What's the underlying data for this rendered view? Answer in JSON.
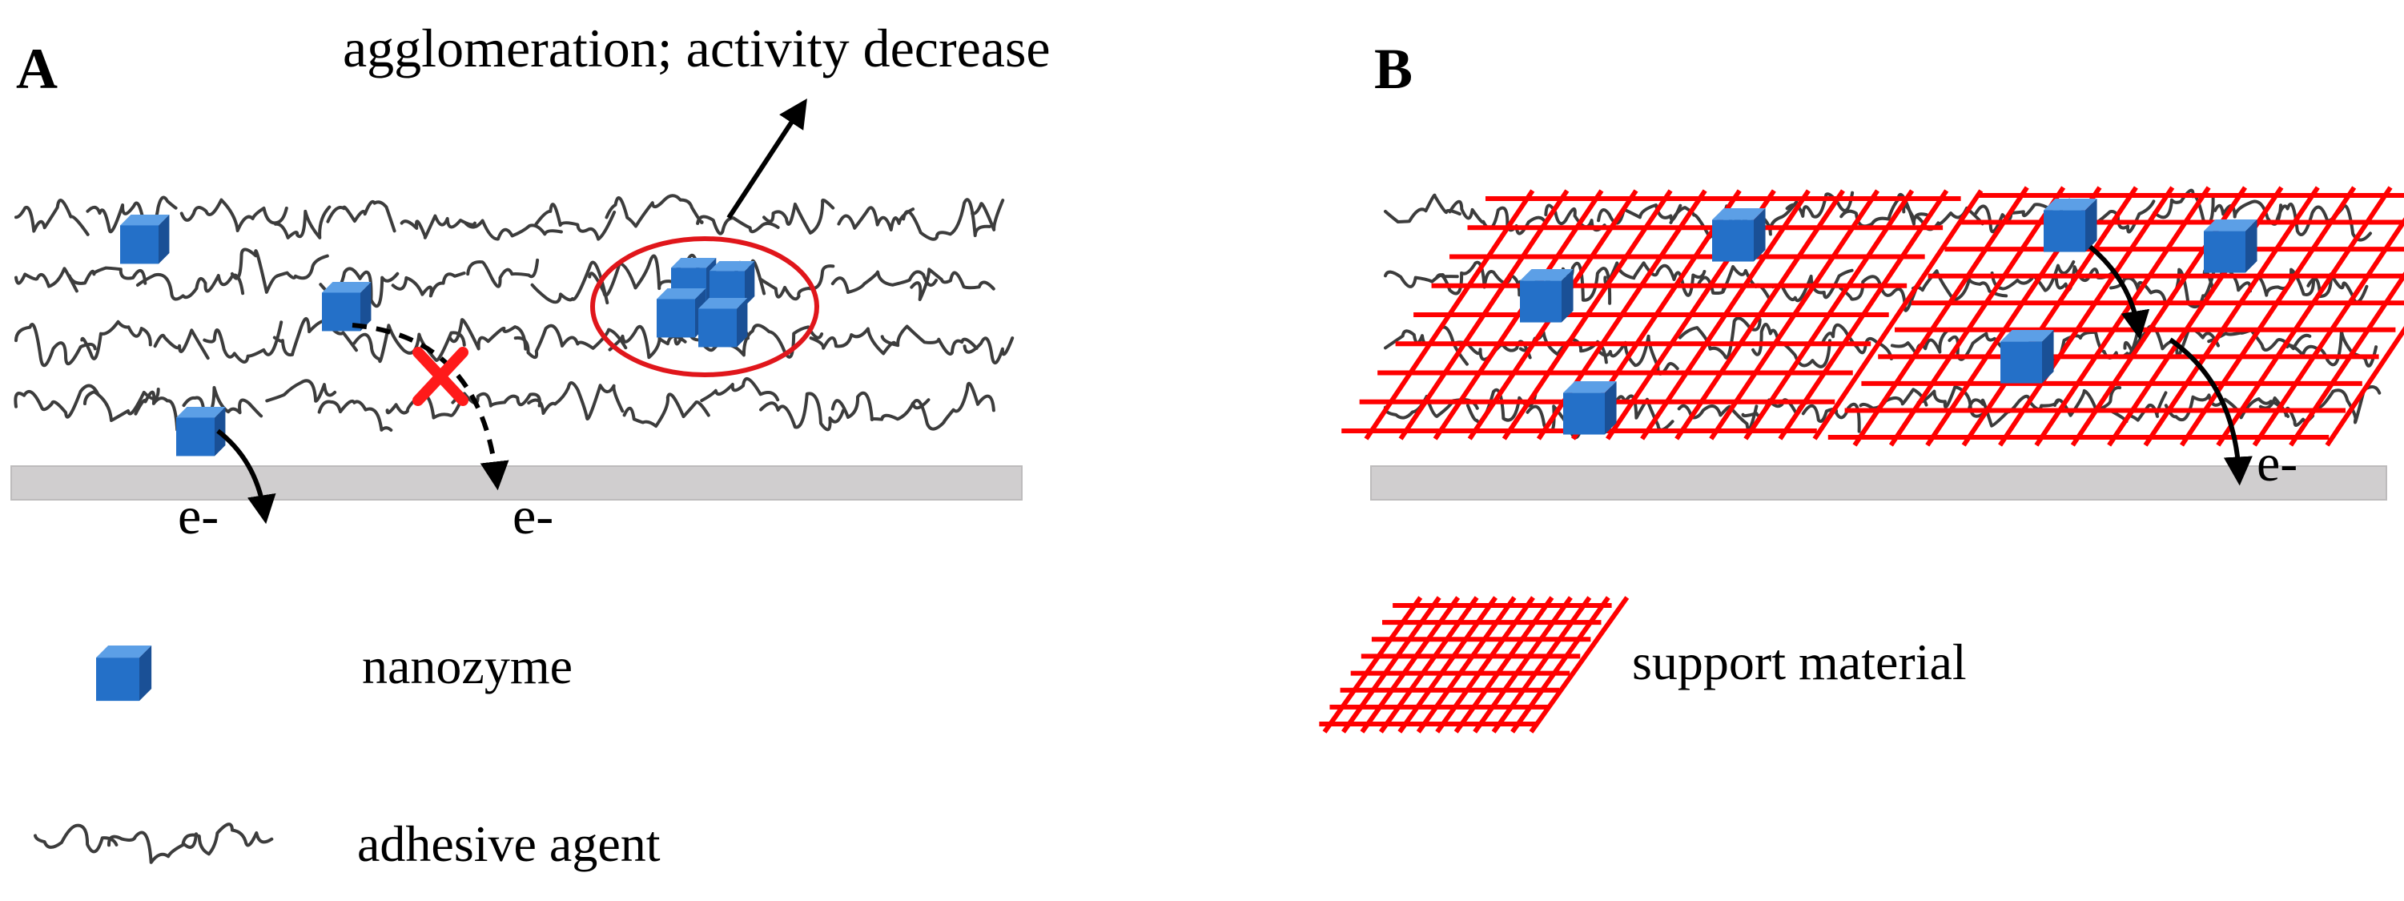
{
  "panels": {
    "a": {
      "letter": "A",
      "annotation": "agglomeration; activity decrease"
    },
    "b": {
      "letter": "B"
    }
  },
  "electron_label": "e-",
  "legend": {
    "nanozyme": "nanozyme",
    "adhesive_agent": "adhesive agent",
    "support_material": "support material"
  },
  "colors": {
    "nanozyme_front": "#2470C8",
    "nanozyme_top": "#5C9FE6",
    "nanozyme_side": "#1A5096",
    "adhesive_strand": "#3C3C3C",
    "support_mesh": "#FF0000",
    "highlight_ring": "#E0161B",
    "electrode": "#D0CECF",
    "blocked_mark": "#FF1A1A"
  },
  "icons": {
    "nanozyme": "blue-cube-icon",
    "adhesive_agent": "wavy-strand-icon",
    "support_material": "red-grid-icon",
    "blocked_transfer": "red-x-icon"
  }
}
